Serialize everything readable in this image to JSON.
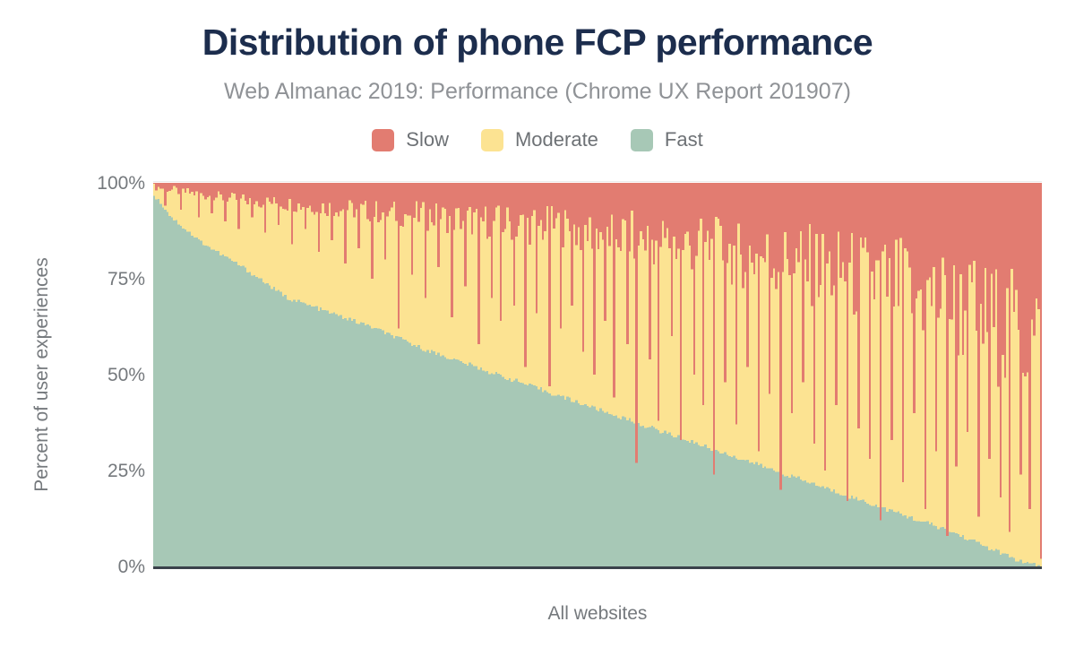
{
  "chart": {
    "title": "Distribution of phone FCP performance",
    "subtitle": "Web Almanac 2019: Performance (Chrome UX Report 201907)",
    "x_axis_label": "All websites",
    "y_axis_label": "Percent of user experiences",
    "y_ticks": [
      "100%",
      "75%",
      "50%",
      "25%",
      "0%"
    ],
    "legend": [
      {
        "label": "Slow",
        "color": "#e27c71"
      },
      {
        "label": "Moderate",
        "color": "#fce392"
      },
      {
        "label": "Fast",
        "color": "#a7c8b6"
      }
    ]
  },
  "chart_data": {
    "type": "bar",
    "stacked": true,
    "orientation": "vertical",
    "title": "Distribution of phone FCP performance",
    "subtitle": "Web Almanac 2019: Performance (Chrome UX Report 201907)",
    "xlabel": "All websites",
    "ylabel": "Percent of user experiences",
    "ylim": [
      0,
      100
    ],
    "y_tick_values": [
      0,
      25,
      50,
      75,
      100
    ],
    "legend_position": "top-center",
    "grid": false,
    "series_order_bottom_to_top": [
      "Fast",
      "Moderate",
      "Slow"
    ],
    "x_meaning": "individual websites sorted by percent of fast FCP experiences, descending",
    "bar_count": 400,
    "colors": {
      "slow": "#e27c71",
      "moderate": "#fce392",
      "fast": "#a7c8b6",
      "axis_line": "#3a424b"
    },
    "fast_pct_keyframes": [
      [
        0,
        97
      ],
      [
        0.02,
        91
      ],
      [
        0.05,
        85
      ],
      [
        0.1,
        78
      ],
      [
        0.15,
        70
      ],
      [
        0.2,
        66
      ],
      [
        0.25,
        62
      ],
      [
        0.3,
        57
      ],
      [
        0.35,
        53
      ],
      [
        0.4,
        49
      ],
      [
        0.45,
        45
      ],
      [
        0.5,
        41
      ],
      [
        0.55,
        37
      ],
      [
        0.6,
        33
      ],
      [
        0.65,
        29
      ],
      [
        0.7,
        25
      ],
      [
        0.75,
        21
      ],
      [
        0.8,
        17
      ],
      [
        0.85,
        13
      ],
      [
        0.9,
        9
      ],
      [
        0.95,
        4
      ],
      [
        0.98,
        1
      ],
      [
        1,
        0
      ]
    ],
    "fast_plus_moderate_pct_keyframes": [
      [
        0,
        99
      ],
      [
        0.05,
        97
      ],
      [
        0.1,
        95.5
      ],
      [
        0.15,
        94.5
      ],
      [
        0.2,
        93.5
      ],
      [
        0.25,
        92.5
      ],
      [
        0.3,
        91.5
      ],
      [
        0.35,
        90.5
      ],
      [
        0.4,
        89.5
      ],
      [
        0.45,
        88.5
      ],
      [
        0.5,
        87
      ],
      [
        0.55,
        85.5
      ],
      [
        0.6,
        84
      ],
      [
        0.65,
        82
      ],
      [
        0.7,
        80
      ],
      [
        0.75,
        78
      ],
      [
        0.8,
        75
      ],
      [
        0.85,
        72
      ],
      [
        0.9,
        68
      ],
      [
        0.95,
        63
      ],
      [
        1,
        58
      ]
    ],
    "noise_amplitude_keyframes": [
      [
        0,
        1
      ],
      [
        0.2,
        2.5
      ],
      [
        0.4,
        5
      ],
      [
        0.6,
        8
      ],
      [
        0.7,
        10
      ],
      [
        0.85,
        14
      ],
      [
        1,
        18
      ]
    ],
    "slow_spikes": [
      {
        "t": 0.012,
        "total": 94
      },
      {
        "t": 0.03,
        "total": 93
      },
      {
        "t": 0.05,
        "total": 91
      },
      {
        "t": 0.065,
        "total": 92
      },
      {
        "t": 0.08,
        "total": 90
      },
      {
        "t": 0.095,
        "total": 88
      },
      {
        "t": 0.11,
        "total": 91
      },
      {
        "t": 0.125,
        "total": 87
      },
      {
        "t": 0.14,
        "total": 89
      },
      {
        "t": 0.155,
        "total": 84
      },
      {
        "t": 0.17,
        "total": 88
      },
      {
        "t": 0.185,
        "total": 82
      },
      {
        "t": 0.2,
        "total": 85
      },
      {
        "t": 0.215,
        "total": 79
      },
      {
        "t": 0.23,
        "total": 83
      },
      {
        "t": 0.245,
        "total": 75
      },
      {
        "t": 0.26,
        "total": 80
      },
      {
        "t": 0.275,
        "total": 62
      },
      {
        "t": 0.29,
        "total": 76
      },
      {
        "t": 0.305,
        "total": 70
      },
      {
        "t": 0.32,
        "total": 78
      },
      {
        "t": 0.335,
        "total": 65
      },
      {
        "t": 0.35,
        "total": 73
      },
      {
        "t": 0.365,
        "total": 58
      },
      {
        "t": 0.38,
        "total": 70
      },
      {
        "t": 0.392,
        "total": 64
      },
      {
        "t": 0.405,
        "total": 68
      },
      {
        "t": 0.418,
        "total": 52
      },
      {
        "t": 0.43,
        "total": 66
      },
      {
        "t": 0.445,
        "total": 47
      },
      {
        "t": 0.458,
        "total": 62
      },
      {
        "t": 0.47,
        "total": 68
      },
      {
        "t": 0.483,
        "total": 56
      },
      {
        "t": 0.495,
        "total": 50
      },
      {
        "t": 0.508,
        "total": 64
      },
      {
        "t": 0.52,
        "total": 44
      },
      {
        "t": 0.533,
        "total": 58
      },
      {
        "t": 0.545,
        "total": 27
      },
      {
        "t": 0.558,
        "total": 54
      },
      {
        "t": 0.57,
        "total": 38
      },
      {
        "t": 0.583,
        "total": 60
      },
      {
        "t": 0.595,
        "total": 33
      },
      {
        "t": 0.608,
        "total": 50
      },
      {
        "t": 0.62,
        "total": 42
      },
      {
        "t": 0.632,
        "total": 24
      },
      {
        "t": 0.645,
        "total": 48
      },
      {
        "t": 0.657,
        "total": 37
      },
      {
        "t": 0.67,
        "total": 52
      },
      {
        "t": 0.682,
        "total": 30
      },
      {
        "t": 0.695,
        "total": 45
      },
      {
        "t": 0.707,
        "total": 20
      },
      {
        "t": 0.72,
        "total": 40
      },
      {
        "t": 0.732,
        "total": 48
      },
      {
        "t": 0.745,
        "total": 32
      },
      {
        "t": 0.757,
        "total": 25
      },
      {
        "t": 0.77,
        "total": 42
      },
      {
        "t": 0.782,
        "total": 17
      },
      {
        "t": 0.795,
        "total": 36
      },
      {
        "t": 0.807,
        "total": 28
      },
      {
        "t": 0.82,
        "total": 12
      },
      {
        "t": 0.832,
        "total": 33
      },
      {
        "t": 0.845,
        "total": 22
      },
      {
        "t": 0.857,
        "total": 40
      },
      {
        "t": 0.87,
        "total": 15
      },
      {
        "t": 0.882,
        "total": 30
      },
      {
        "t": 0.894,
        "total": 8
      },
      {
        "t": 0.906,
        "total": 26
      },
      {
        "t": 0.918,
        "total": 35
      },
      {
        "t": 0.93,
        "total": 13
      },
      {
        "t": 0.942,
        "total": 28
      },
      {
        "t": 0.954,
        "total": 18
      },
      {
        "t": 0.966,
        "total": 9
      },
      {
        "t": 0.978,
        "total": 24
      },
      {
        "t": 0.988,
        "total": 15
      },
      {
        "t": 1.0,
        "total": 2
      }
    ]
  }
}
